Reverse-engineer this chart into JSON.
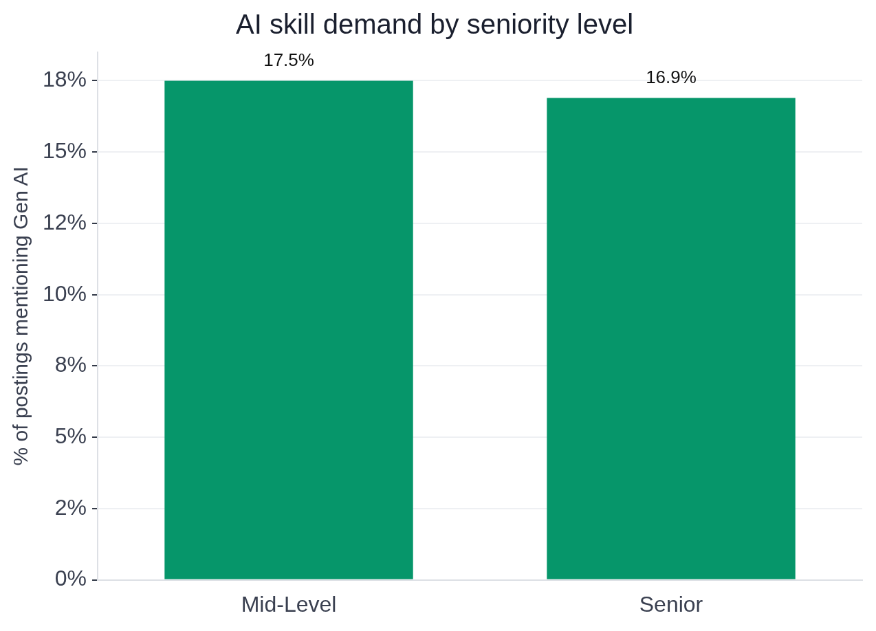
{
  "chart_data": {
    "type": "bar",
    "title": "AI skill demand by seniority level",
    "ylabel": "% of postings mentioning Gen AI",
    "categories": [
      "Mid-Level",
      "Senior"
    ],
    "series": [
      {
        "color": "#06966a",
        "values": [
          17.5,
          16.9
        ]
      }
    ],
    "value_labels": [
      "17.5%",
      "16.9%"
    ],
    "ylim": [
      0,
      18.5
    ],
    "yticks": [
      {
        "value": 0,
        "label": "0%"
      },
      {
        "value": 2.5,
        "label": "2%"
      },
      {
        "value": 5,
        "label": "5%"
      },
      {
        "value": 7.5,
        "label": "8%"
      },
      {
        "value": 10,
        "label": "10%"
      },
      {
        "value": 12.5,
        "label": "12%"
      },
      {
        "value": 15,
        "label": "15%"
      },
      {
        "value": 17.5,
        "label": "18%"
      }
    ],
    "grid": "y",
    "legend": false
  }
}
